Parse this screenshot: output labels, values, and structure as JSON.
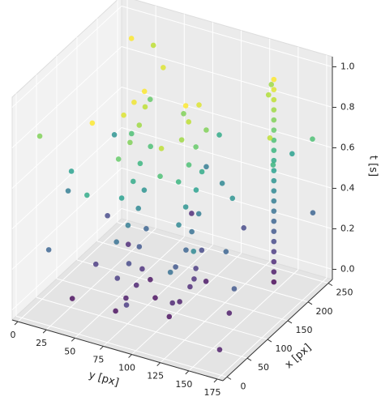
{
  "chart_data": {
    "type": "scatter3d",
    "xlabel": "x [px]",
    "ylabel": "y [px]",
    "zlabel": "t [s]",
    "colormap": "viridis",
    "xlim": [
      -10,
      260
    ],
    "ylim": [
      -5,
      180
    ],
    "zlim": [
      -0.05,
      1.05
    ],
    "xticks": [
      0,
      50,
      100,
      150,
      200,
      250
    ],
    "yticks": [
      0,
      25,
      50,
      75,
      100,
      125,
      150,
      175
    ],
    "zticks": [
      {
        "value": 0,
        "label": "0.0"
      },
      {
        "value": 0.2,
        "label": "0.2"
      },
      {
        "value": 0.4,
        "label": "0.4"
      },
      {
        "value": 0.6,
        "label": "0.6"
      },
      {
        "value": 0.8,
        "label": "0.8"
      },
      {
        "value": 1,
        "label": "1.0"
      }
    ],
    "x": [
      40,
      60,
      80,
      100,
      50,
      70,
      90,
      110,
      45,
      65,
      85,
      105,
      55,
      75,
      95,
      115,
      50,
      70,
      90,
      110,
      60,
      80,
      100,
      120,
      60,
      80,
      100,
      120,
      140,
      70,
      90,
      110,
      130,
      75,
      95,
      115,
      135,
      80,
      100,
      120,
      140,
      85,
      105,
      125,
      95,
      65,
      145,
      110,
      200,
      200,
      200,
      200,
      200,
      200,
      200,
      200,
      200,
      200,
      200,
      200,
      200,
      200,
      200,
      200,
      200,
      200,
      200,
      200,
      200,
      10,
      30,
      200,
      240,
      150,
      20,
      180,
      230,
      5,
      60,
      210,
      250,
      30,
      90,
      170,
      240,
      120,
      40,
      190,
      80,
      220,
      15,
      140,
      60,
      200,
      100,
      160,
      250,
      35,
      130,
      245,
      70,
      185,
      10,
      225,
      110,
      5,
      155,
      90,
      215
    ],
    "y": [
      68,
      70,
      72,
      70,
      66,
      69,
      71,
      70,
      67,
      70,
      72,
      70,
      68,
      71,
      70,
      72,
      67,
      70,
      71,
      69,
      68,
      70,
      72,
      70,
      108,
      110,
      112,
      110,
      108,
      110,
      112,
      110,
      109,
      111,
      110,
      112,
      110,
      109,
      111,
      110,
      112,
      110,
      109,
      111,
      110,
      109,
      110,
      112,
      150,
      150,
      150,
      150,
      150,
      150,
      150,
      150,
      150,
      150,
      150,
      150,
      150,
      150,
      150,
      150,
      150,
      150,
      150,
      150,
      150,
      20,
      5,
      10,
      30,
      40,
      50,
      60,
      80,
      90,
      100,
      120,
      130,
      140,
      150,
      160,
      170,
      175,
      30,
      45,
      15,
      95,
      125,
      135,
      165,
      25,
      5,
      85,
      60,
      110,
      50,
      150,
      40,
      110,
      170,
      175,
      140,
      60,
      20,
      85,
      140
    ],
    "t": [
      0.02,
      0.05,
      0.08,
      0.12,
      0.16,
      0.2,
      0.25,
      0.3,
      0.35,
      0.4,
      0.45,
      0.5,
      0.55,
      0.6,
      0.65,
      0.7,
      0.75,
      0.8,
      0.85,
      0.9,
      0.95,
      0.98,
      1.0,
      0.03,
      0.02,
      0.06,
      0.1,
      0.15,
      0.2,
      0.25,
      0.3,
      0.35,
      0.4,
      0.45,
      0.5,
      0.55,
      0.6,
      0.65,
      0.7,
      0.75,
      0.8,
      0.85,
      0.9,
      0.95,
      1.0,
      0.08,
      0.04,
      0.12,
      0,
      0.05,
      0.1,
      0.15,
      0.2,
      0.25,
      0.3,
      0.35,
      0.4,
      0.45,
      0.5,
      0.55,
      0.6,
      0.65,
      0.7,
      0.75,
      0.8,
      0.85,
      0.9,
      0.95,
      1.0,
      0.3,
      0.8,
      0.5,
      0.9,
      0.1,
      0.6,
      0.95,
      0.4,
      0.15,
      0.7,
      0.2,
      0.85,
      0.45,
      0.05,
      0.65,
      0.3,
      0.9,
      0.02,
      0.75,
      0.55,
      0.6,
      0.35,
      0.5,
      0.25,
      1.0,
      0.4,
      0.8,
      0.1,
      0.9,
      0.7,
      0.55,
      0.15,
      0.45,
      0.05,
      0.7,
      0.3,
      1.0,
      0.2,
      0.02,
      0.88
    ]
  }
}
